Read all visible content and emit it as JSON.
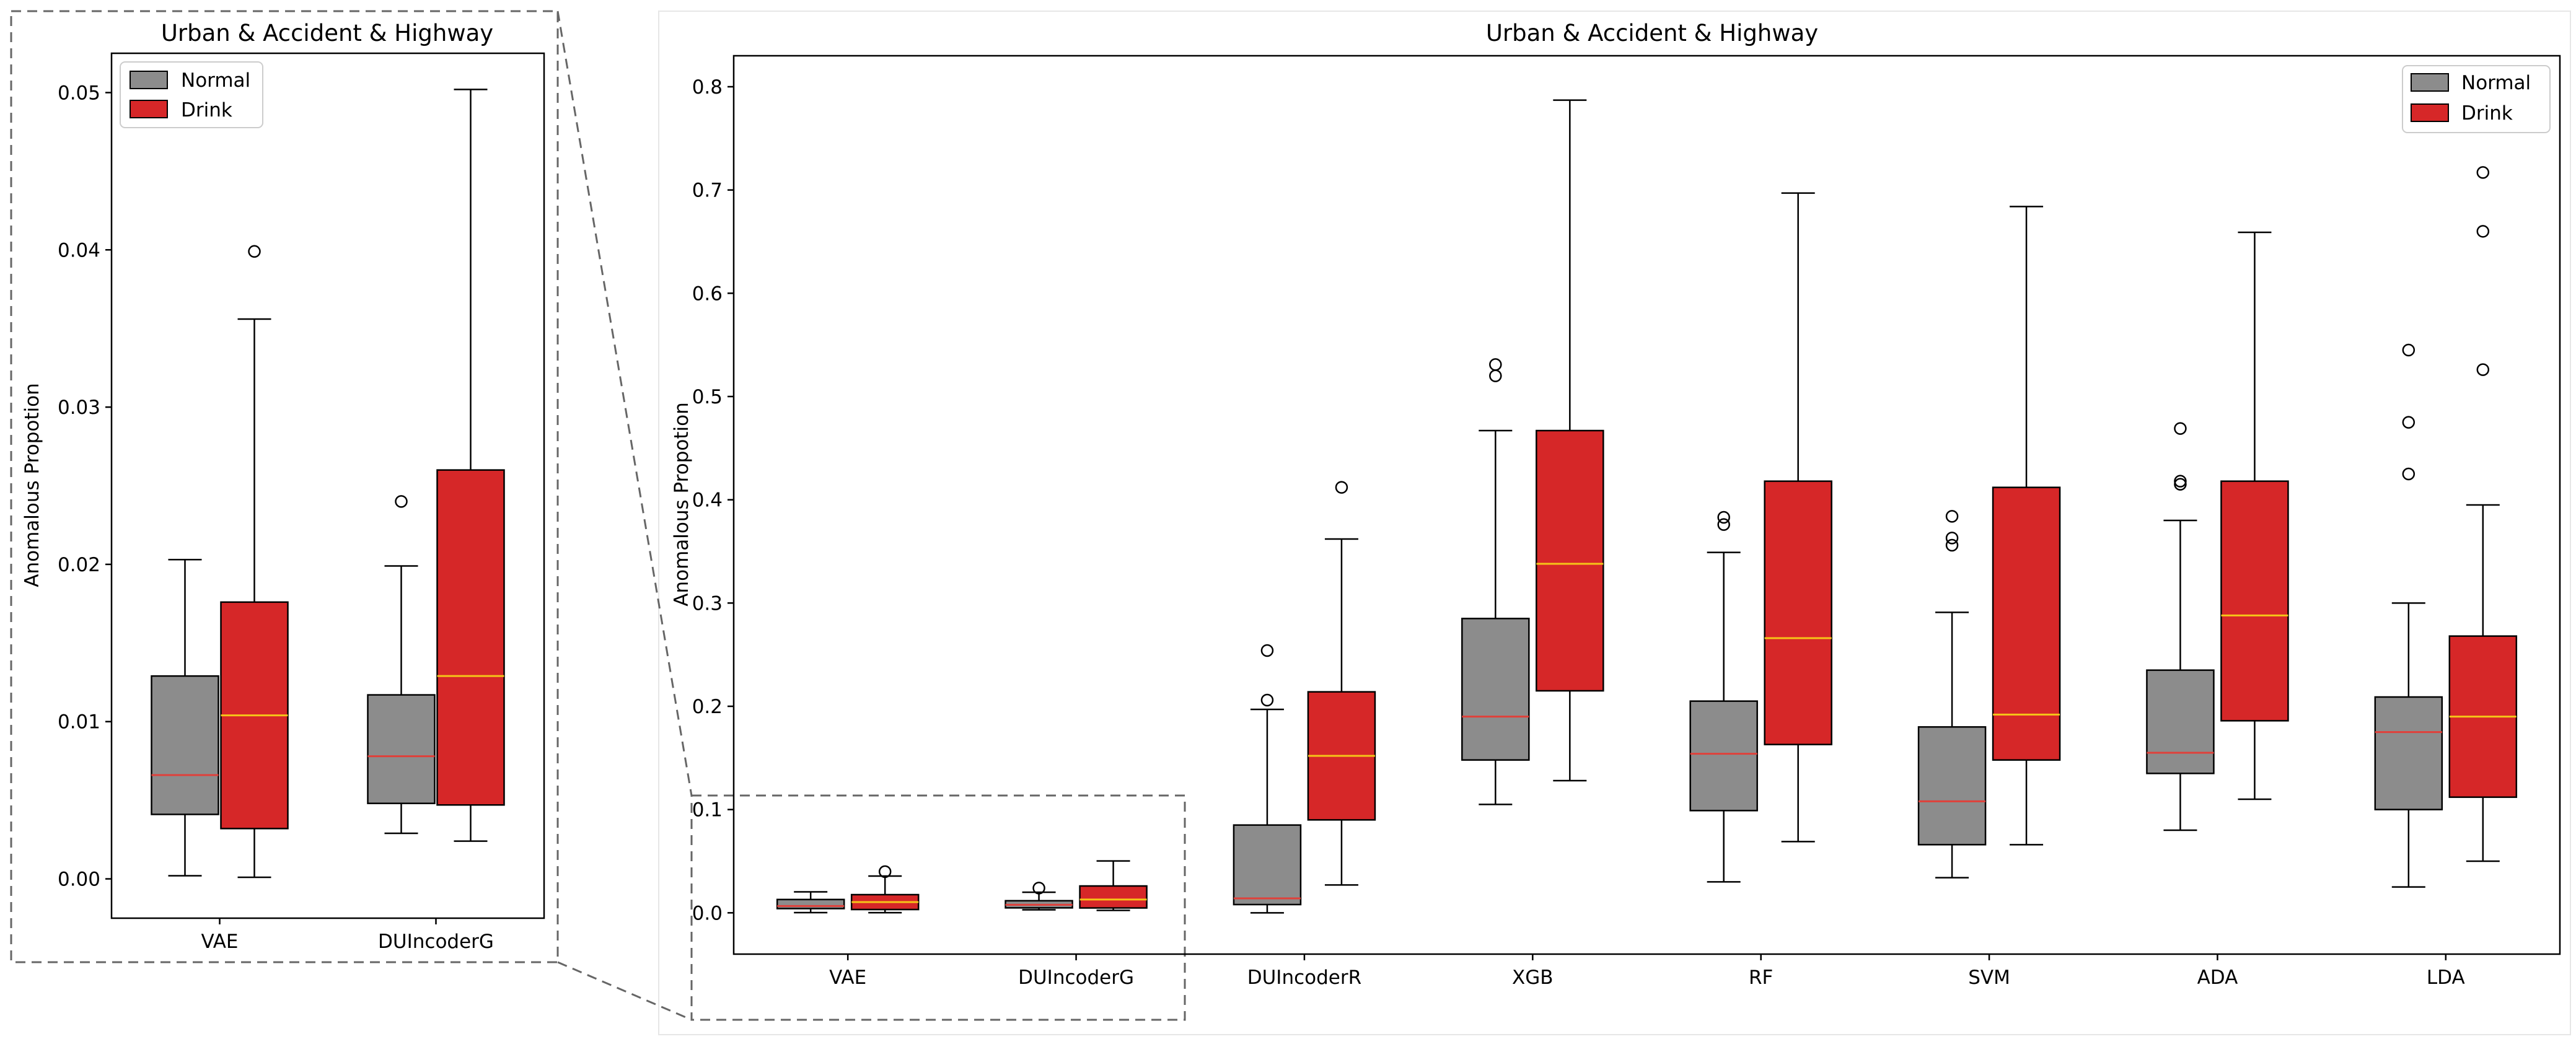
{
  "colors": {
    "normal_fill": "#8c8c8c",
    "drink_fill": "#d62728",
    "normal_median": "#e0403a",
    "drink_median": "#f5c518",
    "zoom_box": "#666666"
  },
  "chart_data": [
    {
      "id": "zoom",
      "type": "box",
      "title": "Urban & Accident & Highway",
      "xlabel": "",
      "ylabel": "Anomalous Propotion",
      "ylim": [
        -0.0025,
        0.0525
      ],
      "yticks": [
        0.0,
        0.01,
        0.02,
        0.03,
        0.04,
        0.05
      ],
      "ytick_labels": [
        "0.00",
        "0.01",
        "0.02",
        "0.03",
        "0.04",
        "0.05"
      ],
      "legend": {
        "position": "top-left",
        "entries": [
          "Normal",
          "Drink"
        ]
      },
      "categories": [
        "VAE",
        "DUIncoderG"
      ],
      "series": [
        {
          "name": "Normal",
          "boxes": [
            {
              "whislo": 0.0002,
              "q1": 0.0041,
              "med": 0.0066,
              "q3": 0.0129,
              "whishi": 0.0203,
              "fliers": []
            },
            {
              "whislo": 0.0029,
              "q1": 0.0048,
              "med": 0.0078,
              "q3": 0.0117,
              "whishi": 0.0199,
              "fliers": [
                0.024
              ]
            }
          ]
        },
        {
          "name": "Drink",
          "boxes": [
            {
              "whislo": 0.0001,
              "q1": 0.0032,
              "med": 0.0104,
              "q3": 0.0176,
              "whishi": 0.0356,
              "fliers": [
                0.0399
              ]
            },
            {
              "whislo": 0.0024,
              "q1": 0.0047,
              "med": 0.0129,
              "q3": 0.026,
              "whishi": 0.0502,
              "fliers": []
            }
          ]
        }
      ]
    },
    {
      "id": "main",
      "type": "box",
      "title": "Urban & Accident & Highway",
      "xlabel": "",
      "ylabel": "Anomalous Propotion",
      "ylim": [
        -0.04,
        0.83
      ],
      "yticks": [
        0.0,
        0.1,
        0.2,
        0.3,
        0.4,
        0.5,
        0.6,
        0.7,
        0.8
      ],
      "ytick_labels": [
        "0.0",
        "0.1",
        "0.2",
        "0.3",
        "0.4",
        "0.5",
        "0.6",
        "0.7",
        "0.8"
      ],
      "legend": {
        "position": "top-right",
        "entries": [
          "Normal",
          "Drink"
        ]
      },
      "categories": [
        "VAE",
        "DUIncoderG",
        "DUIncoderR",
        "XGB",
        "RF",
        "SVM",
        "ADA",
        "LDA"
      ],
      "series": [
        {
          "name": "Normal",
          "boxes": [
            {
              "whislo": 0.0002,
              "q1": 0.0041,
              "med": 0.0066,
              "q3": 0.0129,
              "whishi": 0.0203,
              "fliers": []
            },
            {
              "whislo": 0.0029,
              "q1": 0.0048,
              "med": 0.0078,
              "q3": 0.0117,
              "whishi": 0.0199,
              "fliers": [
                0.024
              ]
            },
            {
              "whislo": 0.0,
              "q1": 0.008,
              "med": 0.014,
              "q3": 0.085,
              "whishi": 0.197,
              "fliers": [
                0.206,
                0.254
              ]
            },
            {
              "whislo": 0.105,
              "q1": 0.148,
              "med": 0.19,
              "q3": 0.285,
              "whishi": 0.467,
              "fliers": [
                0.52,
                0.531
              ]
            },
            {
              "whislo": 0.03,
              "q1": 0.099,
              "med": 0.154,
              "q3": 0.205,
              "whishi": 0.349,
              "fliers": [
                0.376,
                0.383
              ]
            },
            {
              "whislo": 0.034,
              "q1": 0.066,
              "med": 0.108,
              "q3": 0.18,
              "whishi": 0.291,
              "fliers": [
                0.356,
                0.363,
                0.384
              ]
            },
            {
              "whislo": 0.08,
              "q1": 0.135,
              "med": 0.155,
              "q3": 0.235,
              "whishi": 0.38,
              "fliers": [
                0.415,
                0.418,
                0.469
              ]
            },
            {
              "whislo": 0.025,
              "q1": 0.1,
              "med": 0.175,
              "q3": 0.209,
              "whishi": 0.3,
              "fliers": [
                0.425,
                0.475,
                0.545
              ]
            }
          ]
        },
        {
          "name": "Drink",
          "boxes": [
            {
              "whislo": 0.0001,
              "q1": 0.0032,
              "med": 0.0104,
              "q3": 0.0176,
              "whishi": 0.0356,
              "fliers": [
                0.0399
              ]
            },
            {
              "whislo": 0.0024,
              "q1": 0.0047,
              "med": 0.0129,
              "q3": 0.026,
              "whishi": 0.0502,
              "fliers": []
            },
            {
              "whislo": 0.027,
              "q1": 0.09,
              "med": 0.152,
              "q3": 0.214,
              "whishi": 0.362,
              "fliers": [
                0.412
              ]
            },
            {
              "whislo": 0.128,
              "q1": 0.215,
              "med": 0.338,
              "q3": 0.467,
              "whishi": 0.787,
              "fliers": []
            },
            {
              "whislo": 0.069,
              "q1": 0.163,
              "med": 0.266,
              "q3": 0.418,
              "whishi": 0.697,
              "fliers": []
            },
            {
              "whislo": 0.066,
              "q1": 0.148,
              "med": 0.192,
              "q3": 0.412,
              "whishi": 0.684,
              "fliers": []
            },
            {
              "whislo": 0.11,
              "q1": 0.186,
              "med": 0.288,
              "q3": 0.418,
              "whishi": 0.659,
              "fliers": []
            },
            {
              "whislo": 0.05,
              "q1": 0.112,
              "med": 0.19,
              "q3": 0.268,
              "whishi": 0.395,
              "fliers": [
                0.526,
                0.66,
                0.717
              ]
            }
          ]
        }
      ]
    }
  ]
}
